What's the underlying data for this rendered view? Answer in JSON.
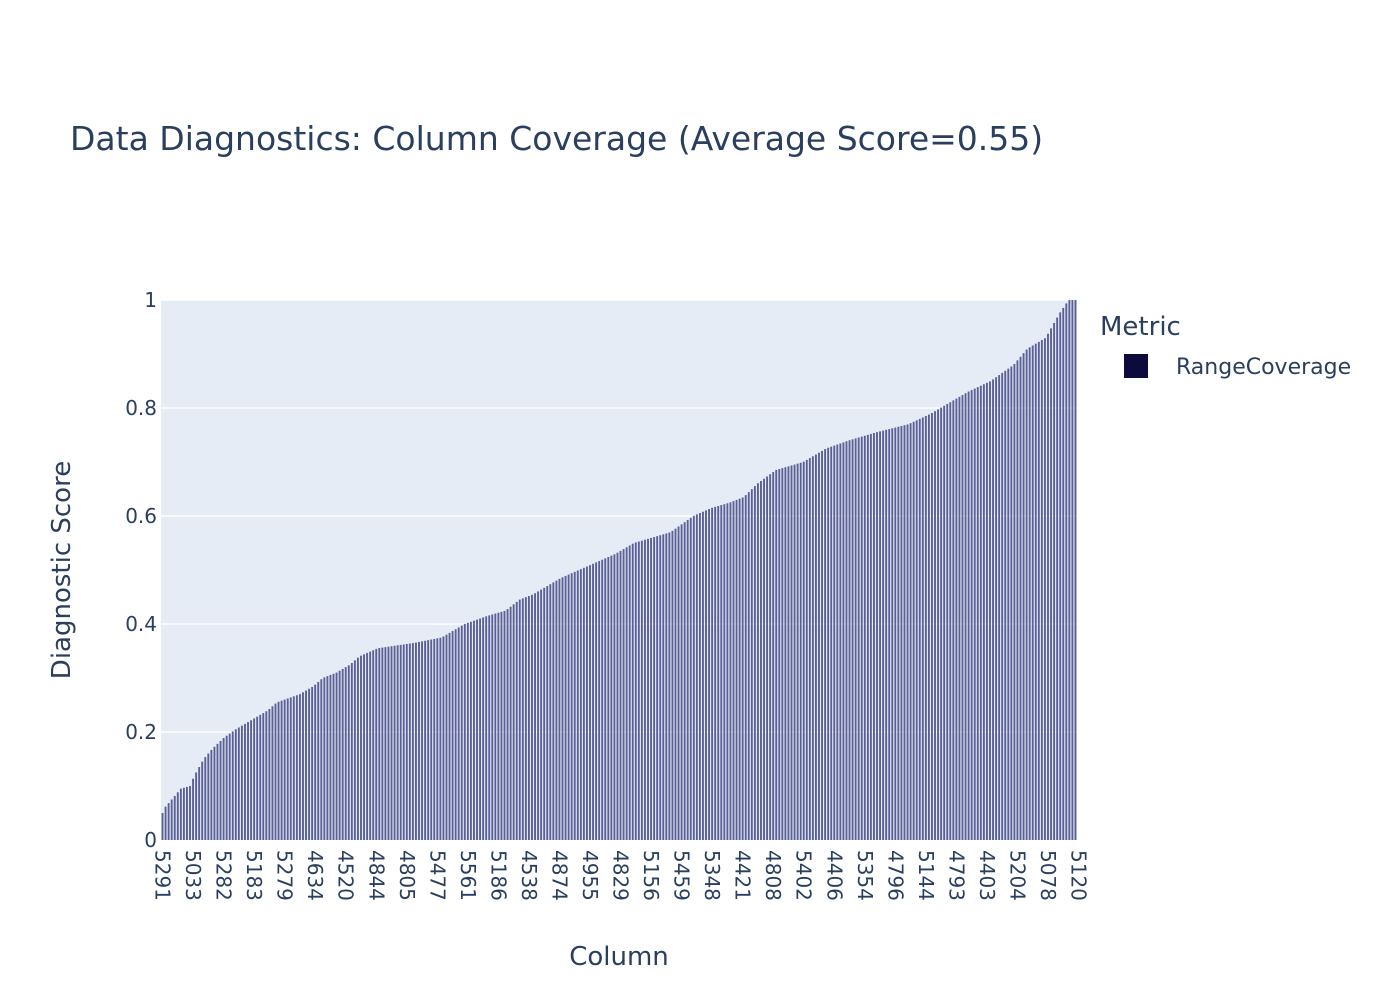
{
  "chart_data": {
    "type": "bar",
    "title": "Data Diagnostics: Column Coverage (Average Score=0.55)",
    "xlabel": "Column",
    "ylabel": "Diagnostic Score",
    "ylim": [
      0,
      1
    ],
    "yticks": [
      0,
      0.2,
      0.4,
      0.6,
      0.8,
      1
    ],
    "ytick_labels": [
      "0",
      "0.2",
      "0.4",
      "0.6",
      "0.8",
      "1"
    ],
    "x_tick_labels": [
      "5291",
      "5033",
      "5282",
      "5183",
      "5279",
      "4634",
      "4520",
      "4844",
      "4805",
      "5477",
      "5561",
      "5186",
      "4538",
      "4874",
      "4955",
      "4829",
      "5156",
      "5459",
      "5348",
      "4421",
      "4808",
      "5402",
      "4406",
      "5354",
      "4796",
      "5144",
      "4793",
      "4403",
      "5204",
      "5078",
      "5120"
    ],
    "bar_count": 300,
    "bar_color": "#440154",
    "bar_fill": "rgba(90,95,150,1)",
    "grid": true,
    "legend_position": "right",
    "legend_title": "Metric",
    "series": [
      {
        "name": "RangeCoverage",
        "color": "#0d0a3c",
        "profile": [
          [
            0,
            0.05
          ],
          [
            1,
            0.06
          ],
          [
            4,
            0.075
          ],
          [
            8,
            0.095
          ],
          [
            12,
            0.1
          ],
          [
            14,
            0.12
          ],
          [
            18,
            0.15
          ],
          [
            22,
            0.17
          ],
          [
            27,
            0.19
          ],
          [
            32,
            0.205
          ],
          [
            40,
            0.225
          ],
          [
            46,
            0.24
          ],
          [
            50,
            0.255
          ],
          [
            60,
            0.27
          ],
          [
            66,
            0.285
          ],
          [
            70,
            0.3
          ],
          [
            76,
            0.31
          ],
          [
            82,
            0.325
          ],
          [
            86,
            0.34
          ],
          [
            94,
            0.355
          ],
          [
            110,
            0.365
          ],
          [
            122,
            0.375
          ],
          [
            132,
            0.4
          ],
          [
            142,
            0.415
          ],
          [
            150,
            0.425
          ],
          [
            156,
            0.445
          ],
          [
            162,
            0.455
          ],
          [
            168,
            0.47
          ],
          [
            174,
            0.485
          ],
          [
            182,
            0.5
          ],
          [
            190,
            0.515
          ],
          [
            198,
            0.53
          ],
          [
            206,
            0.55
          ],
          [
            222,
            0.57
          ],
          [
            232,
            0.6
          ],
          [
            240,
            0.615
          ],
          [
            248,
            0.625
          ],
          [
            254,
            0.635
          ],
          [
            260,
            0.66
          ],
          [
            268,
            0.685
          ],
          [
            280,
            0.7
          ],
          [
            290,
            0.725
          ],
          [
            300,
            0.74
          ],
          [
            312,
            0.755
          ],
          [
            326,
            0.77
          ],
          [
            336,
            0.79
          ],
          [
            344,
            0.81
          ],
          [
            352,
            0.83
          ],
          [
            362,
            0.85
          ],
          [
            372,
            0.88
          ],
          [
            378,
            0.91
          ],
          [
            386,
            0.93
          ],
          [
            392,
            0.975
          ],
          [
            396,
            1.0
          ],
          [
            399,
            1.0
          ]
        ]
      }
    ]
  }
}
